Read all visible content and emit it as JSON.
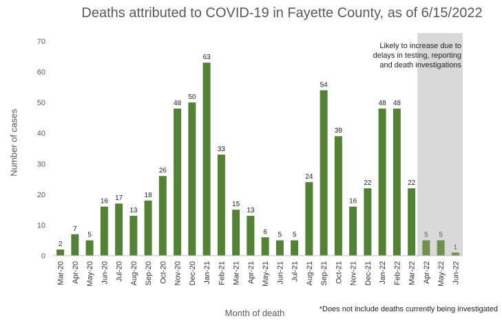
{
  "chart_data": {
    "type": "bar",
    "title": "Deaths attributed to COVID-19 in Fayette County, as of 6/15/2022",
    "xlabel": "Month of death",
    "ylabel": "Number of cases",
    "ylim": [
      0,
      70
    ],
    "yticks": [
      0,
      10,
      20,
      30,
      40,
      50,
      60,
      70
    ],
    "grid": false,
    "categories": [
      "Mar-20",
      "Apr-20",
      "May-20",
      "Jun-20",
      "Jul-20",
      "Aug-20",
      "Sep-20",
      "Oct-20",
      "Nov-20",
      "Dec-20",
      "Jan-21",
      "Feb-21",
      "Mar-21",
      "Apr-21",
      "May-21",
      "Jun-21",
      "Jul-21",
      "Aug-21",
      "Sep-21",
      "Oct-21",
      "Nov-21",
      "Dec-21",
      "Jan-22",
      "Feb-22",
      "Mar-22",
      "Apr-22",
      "May-22",
      "Jun-22"
    ],
    "values": [
      2,
      7,
      5,
      16,
      17,
      13,
      18,
      26,
      48,
      50,
      63,
      33,
      15,
      13,
      6,
      5,
      5,
      24,
      54,
      39,
      16,
      22,
      48,
      48,
      22,
      5,
      5,
      1
    ],
    "shaded_categories": [
      "Apr-22",
      "May-22",
      "Jun-22"
    ],
    "shaded_annotation": "Likely to increase due to delays in testing, reporting and death investigations",
    "footnote": "*Does not include deaths currently being investigated",
    "colors": {
      "bar": "#548235",
      "bar_shaded": "#6f8f4e",
      "shade": "#d9d9d9",
      "axis": "#bfbfbf",
      "text": "#595959"
    }
  }
}
